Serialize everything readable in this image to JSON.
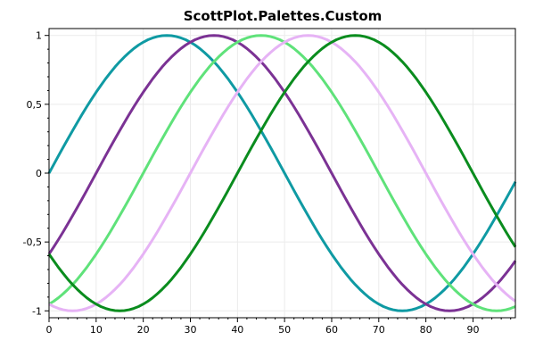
{
  "chart_data": {
    "type": "line",
    "title": "ScottPlot.Palettes.Custom",
    "xlabel": "",
    "ylabel": "",
    "xlim": [
      0,
      99
    ],
    "ylim": [
      -1.05,
      1.05
    ],
    "x_ticks": [
      0,
      10,
      20,
      30,
      40,
      50,
      60,
      70,
      80,
      90
    ],
    "x_tick_labels": [
      "0",
      "10",
      "20",
      "30",
      "40",
      "50",
      "60",
      "70",
      "80",
      "90"
    ],
    "y_ticks": [
      1,
      0.5,
      0,
      -0.5,
      -1
    ],
    "y_tick_labels": [
      "1",
      "0,5",
      "0",
      "-0,5",
      "-1"
    ],
    "grid": true,
    "x": [
      0,
      1,
      2,
      3,
      4,
      5,
      6,
      7,
      8,
      9,
      10,
      11,
      12,
      13,
      14,
      15,
      16,
      17,
      18,
      19,
      20,
      21,
      22,
      23,
      24,
      25,
      26,
      27,
      28,
      29,
      30,
      31,
      32,
      33,
      34,
      35,
      36,
      37,
      38,
      39,
      40,
      41,
      42,
      43,
      44,
      45,
      46,
      47,
      48,
      49,
      50,
      51,
      52,
      53,
      54,
      55,
      56,
      57,
      58,
      59,
      60,
      61,
      62,
      63,
      64,
      65,
      66,
      67,
      68,
      69,
      70,
      71,
      72,
      73,
      74,
      75,
      76,
      77,
      78,
      79,
      80,
      81,
      82,
      83,
      84,
      85,
      86,
      87,
      88,
      89,
      90,
      91,
      92,
      93,
      94,
      95,
      96,
      97,
      98,
      99
    ],
    "series": [
      {
        "color": "#0F9AA3",
        "values": [
          0,
          0.063,
          0.126,
          0.188,
          0.249,
          0.309,
          0.368,
          0.426,
          0.482,
          0.536,
          0.588,
          0.637,
          0.685,
          0.729,
          0.771,
          0.809,
          0.844,
          0.876,
          0.905,
          0.93,
          0.951,
          0.969,
          0.982,
          0.992,
          0.998,
          1,
          0.998,
          0.992,
          0.982,
          0.969,
          0.951,
          0.93,
          0.905,
          0.876,
          0.844,
          0.809,
          0.771,
          0.729,
          0.685,
          0.637,
          0.588,
          0.536,
          0.482,
          0.426,
          0.368,
          0.309,
          0.249,
          0.188,
          0.126,
          0.063,
          0,
          -0.063,
          -0.126,
          -0.188,
          -0.249,
          -0.309,
          -0.368,
          -0.426,
          -0.482,
          -0.536,
          -0.588,
          -0.637,
          -0.685,
          -0.729,
          -0.771,
          -0.809,
          -0.844,
          -0.876,
          -0.905,
          -0.93,
          -0.951,
          -0.969,
          -0.982,
          -0.992,
          -0.998,
          -1,
          -0.998,
          -0.992,
          -0.982,
          -0.969,
          -0.951,
          -0.93,
          -0.905,
          -0.876,
          -0.844,
          -0.809,
          -0.771,
          -0.729,
          -0.685,
          -0.637,
          -0.588,
          -0.536,
          -0.482,
          -0.426,
          -0.368,
          -0.309,
          -0.249,
          -0.188,
          -0.126,
          -0.063
        ]
      },
      {
        "color": "#7B3294",
        "values": [
          -0.588,
          -0.536,
          -0.482,
          -0.426,
          -0.368,
          -0.309,
          -0.249,
          -0.188,
          -0.126,
          -0.063,
          0,
          0.063,
          0.126,
          0.188,
          0.249,
          0.309,
          0.368,
          0.426,
          0.482,
          0.536,
          0.588,
          0.637,
          0.685,
          0.729,
          0.771,
          0.809,
          0.844,
          0.876,
          0.905,
          0.93,
          0.951,
          0.969,
          0.982,
          0.992,
          0.998,
          1,
          0.998,
          0.992,
          0.982,
          0.969,
          0.951,
          0.93,
          0.905,
          0.876,
          0.844,
          0.809,
          0.771,
          0.729,
          0.685,
          0.637,
          0.588,
          0.536,
          0.482,
          0.426,
          0.368,
          0.309,
          0.249,
          0.188,
          0.126,
          0.063,
          0,
          -0.063,
          -0.126,
          -0.188,
          -0.249,
          -0.309,
          -0.368,
          -0.426,
          -0.482,
          -0.536,
          -0.588,
          -0.637,
          -0.685,
          -0.729,
          -0.771,
          -0.809,
          -0.844,
          -0.876,
          -0.905,
          -0.93,
          -0.951,
          -0.969,
          -0.982,
          -0.992,
          -0.998,
          -1,
          -0.998,
          -0.992,
          -0.982,
          -0.969,
          -0.951,
          -0.93,
          -0.905,
          -0.876,
          -0.844,
          -0.809,
          -0.771,
          -0.729,
          -0.685,
          -0.637
        ]
      },
      {
        "color": "#5FE27A",
        "values": [
          -0.951,
          -0.93,
          -0.905,
          -0.876,
          -0.844,
          -0.809,
          -0.771,
          -0.729,
          -0.685,
          -0.637,
          -0.588,
          -0.536,
          -0.482,
          -0.426,
          -0.368,
          -0.309,
          -0.249,
          -0.188,
          -0.126,
          -0.063,
          0,
          0.063,
          0.126,
          0.188,
          0.249,
          0.309,
          0.368,
          0.426,
          0.482,
          0.536,
          0.588,
          0.637,
          0.685,
          0.729,
          0.771,
          0.809,
          0.844,
          0.876,
          0.905,
          0.93,
          0.951,
          0.969,
          0.982,
          0.992,
          0.998,
          1,
          0.998,
          0.992,
          0.982,
          0.969,
          0.951,
          0.93,
          0.905,
          0.876,
          0.844,
          0.809,
          0.771,
          0.729,
          0.685,
          0.637,
          0.588,
          0.536,
          0.482,
          0.426,
          0.368,
          0.309,
          0.249,
          0.188,
          0.126,
          0.063,
          0,
          -0.063,
          -0.126,
          -0.188,
          -0.249,
          -0.309,
          -0.368,
          -0.426,
          -0.482,
          -0.536,
          -0.588,
          -0.637,
          -0.685,
          -0.729,
          -0.771,
          -0.809,
          -0.844,
          -0.876,
          -0.905,
          -0.93,
          -0.951,
          -0.969,
          -0.982,
          -0.992,
          -0.998,
          -1,
          -0.998,
          -0.992,
          -0.982,
          -0.969
        ]
      },
      {
        "color": "#E6B3F5",
        "values": [
          -0.951,
          -0.969,
          -0.982,
          -0.992,
          -0.998,
          -1,
          -0.998,
          -0.992,
          -0.982,
          -0.969,
          -0.951,
          -0.93,
          -0.905,
          -0.876,
          -0.844,
          -0.809,
          -0.771,
          -0.729,
          -0.685,
          -0.637,
          -0.588,
          -0.536,
          -0.482,
          -0.426,
          -0.368,
          -0.309,
          -0.249,
          -0.188,
          -0.126,
          -0.063,
          0,
          0.063,
          0.126,
          0.188,
          0.249,
          0.309,
          0.368,
          0.426,
          0.482,
          0.536,
          0.588,
          0.637,
          0.685,
          0.729,
          0.771,
          0.809,
          0.844,
          0.876,
          0.905,
          0.93,
          0.951,
          0.969,
          0.982,
          0.992,
          0.998,
          1,
          0.998,
          0.992,
          0.982,
          0.969,
          0.951,
          0.93,
          0.905,
          0.876,
          0.844,
          0.809,
          0.771,
          0.729,
          0.685,
          0.637,
          0.588,
          0.536,
          0.482,
          0.426,
          0.368,
          0.309,
          0.249,
          0.188,
          0.126,
          0.063,
          0,
          -0.063,
          -0.126,
          -0.188,
          -0.249,
          -0.309,
          -0.368,
          -0.426,
          -0.482,
          -0.536,
          -0.588,
          -0.637,
          -0.685,
          -0.729,
          -0.771,
          -0.809,
          -0.844,
          -0.876,
          -0.905,
          -0.93
        ]
      },
      {
        "color": "#0A8C1E",
        "values": [
          -0.588,
          -0.637,
          -0.685,
          -0.729,
          -0.771,
          -0.809,
          -0.844,
          -0.876,
          -0.905,
          -0.93,
          -0.951,
          -0.969,
          -0.982,
          -0.992,
          -0.998,
          -1,
          -0.998,
          -0.992,
          -0.982,
          -0.969,
          -0.951,
          -0.93,
          -0.905,
          -0.876,
          -0.844,
          -0.809,
          -0.771,
          -0.729,
          -0.685,
          -0.637,
          -0.588,
          -0.536,
          -0.482,
          -0.426,
          -0.368,
          -0.309,
          -0.249,
          -0.188,
          -0.126,
          -0.063,
          0,
          0.063,
          0.126,
          0.188,
          0.249,
          0.309,
          0.368,
          0.426,
          0.482,
          0.536,
          0.588,
          0.637,
          0.685,
          0.729,
          0.771,
          0.809,
          0.844,
          0.876,
          0.905,
          0.93,
          0.951,
          0.969,
          0.982,
          0.992,
          0.998,
          1,
          0.998,
          0.992,
          0.982,
          0.969,
          0.951,
          0.93,
          0.905,
          0.876,
          0.844,
          0.809,
          0.771,
          0.729,
          0.685,
          0.637,
          0.588,
          0.536,
          0.482,
          0.426,
          0.368,
          0.309,
          0.249,
          0.188,
          0.126,
          0.063,
          0,
          -0.063,
          -0.126,
          -0.188,
          -0.249,
          -0.309,
          -0.368,
          -0.426,
          -0.482,
          -0.536
        ]
      }
    ]
  }
}
